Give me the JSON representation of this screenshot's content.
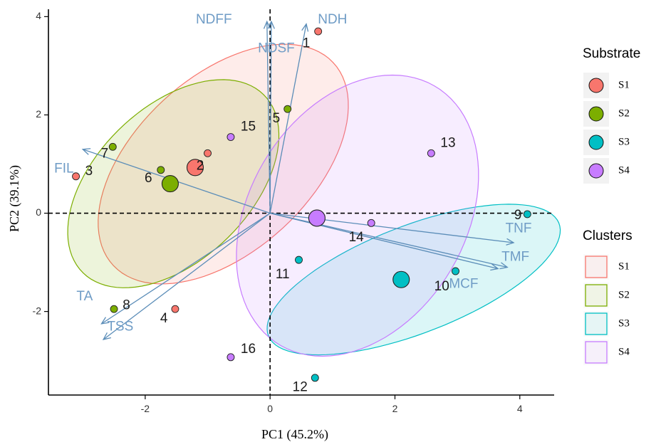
{
  "chart_data": {
    "type": "scatter",
    "subtype": "pca-biplot",
    "xlabel": "PC1 (45.2%)",
    "ylabel": "PC2 (39.1%)",
    "xlim": [
      -3.55,
      4.55
    ],
    "ylim": [
      -3.7,
      4.15
    ],
    "xticks": [
      -2,
      0,
      2,
      4
    ],
    "yticks": [
      -2,
      0,
      2,
      4
    ],
    "grid": false,
    "reference_lines": {
      "x": 0,
      "y": 0,
      "style": "dashed"
    },
    "groups": [
      {
        "name": "S1",
        "color": "#F8766D"
      },
      {
        "name": "S2",
        "color": "#7CAE00"
      },
      {
        "name": "S3",
        "color": "#00BFC4"
      },
      {
        "name": "S4",
        "color": "#C77CFF"
      }
    ],
    "points": [
      {
        "label": "1",
        "x": 0.77,
        "y": 3.7,
        "group": "S1"
      },
      {
        "label": "2",
        "x": -1.0,
        "y": 1.22,
        "group": "S1"
      },
      {
        "label": "3",
        "x": -3.11,
        "y": 0.75,
        "group": "S1"
      },
      {
        "label": "4",
        "x": -1.52,
        "y": -1.95,
        "group": "S1"
      },
      {
        "label": "5",
        "x": 0.28,
        "y": 2.12,
        "group": "S2"
      },
      {
        "label": "6",
        "x": -1.75,
        "y": 0.88,
        "group": "S2"
      },
      {
        "label": "7",
        "x": -2.52,
        "y": 1.35,
        "group": "S2"
      },
      {
        "label": "8",
        "x": -2.5,
        "y": -1.95,
        "group": "S2"
      },
      {
        "label": "9",
        "x": 4.12,
        "y": -0.02,
        "group": "S3"
      },
      {
        "label": "10",
        "x": 2.97,
        "y": -1.18,
        "group": "S3"
      },
      {
        "label": "11",
        "x": 0.46,
        "y": -0.95,
        "group": "S3"
      },
      {
        "label": "12",
        "x": 0.72,
        "y": -3.35,
        "group": "S3"
      },
      {
        "label": "13",
        "x": 2.58,
        "y": 1.22,
        "group": "S4"
      },
      {
        "label": "14",
        "x": 1.62,
        "y": -0.2,
        "group": "S4"
      },
      {
        "label": "15",
        "x": -0.63,
        "y": 1.55,
        "group": "S4"
      },
      {
        "label": "16",
        "x": -0.63,
        "y": -2.93,
        "group": "S4"
      }
    ],
    "centroids": [
      {
        "group": "S1",
        "x": -1.2,
        "y": 0.93
      },
      {
        "group": "S2",
        "x": -1.6,
        "y": 0.6
      },
      {
        "group": "S3",
        "x": 2.1,
        "y": -1.35
      },
      {
        "group": "S4",
        "x": 0.75,
        "y": -0.1
      }
    ],
    "ellipses": [
      {
        "group": "S1",
        "cx": -0.75,
        "cy": 1.0,
        "rx": 2.75,
        "ry": 1.55,
        "angle": 56
      },
      {
        "group": "S2",
        "cx": -1.55,
        "cy": 0.6,
        "rx": 2.35,
        "ry": 1.35,
        "angle": 58
      },
      {
        "group": "S3",
        "cx": 2.3,
        "cy": -1.35,
        "rx": 2.6,
        "ry": 1.05,
        "angle": 28
      },
      {
        "group": "S4",
        "cx": 1.4,
        "cy": -0.05,
        "rx": 2.95,
        "ry": 1.8,
        "angle": 72
      }
    ],
    "loadings": [
      {
        "label": "NDFF",
        "x": -0.05,
        "y": 3.9
      },
      {
        "label": "NDSF",
        "x": 0.02,
        "y": 3.9
      },
      {
        "label": "NDH",
        "x": 0.58,
        "y": 3.85
      },
      {
        "label": "FIL",
        "x": -3.0,
        "y": 1.3
      },
      {
        "label": "TA",
        "x": -2.7,
        "y": -2.25
      },
      {
        "label": "TSS",
        "x": -2.67,
        "y": -2.57
      },
      {
        "label": "TNF",
        "x": 3.9,
        "y": -0.6
      },
      {
        "label": "TMF",
        "x": 3.8,
        "y": -1.1
      },
      {
        "label": "MCF",
        "x": 3.65,
        "y": -1.13
      }
    ],
    "loading_labels": [
      {
        "label": "NDFF",
        "x": -0.9,
        "y": 3.93
      },
      {
        "label": "NDSF",
        "x": 0.1,
        "y": 3.35
      },
      {
        "label": "NDH",
        "x": 1.0,
        "y": 3.93
      },
      {
        "label": "FIL",
        "x": -3.3,
        "y": 0.9
      },
      {
        "label": "TA",
        "x": -2.97,
        "y": -1.7
      },
      {
        "label": "TSS",
        "x": -2.4,
        "y": -2.32
      },
      {
        "label": "TNF",
        "x": 3.98,
        "y": -0.32
      },
      {
        "label": "TMF",
        "x": 3.93,
        "y": -0.9
      },
      {
        "label": "MCF",
        "x": 3.1,
        "y": -1.45
      }
    ],
    "point_labels": [
      {
        "label": "1",
        "x": 0.58,
        "y": 3.45
      },
      {
        "label": "2",
        "x": -1.12,
        "y": 0.96
      },
      {
        "label": "3",
        "x": -2.9,
        "y": 0.85
      },
      {
        "label": "4",
        "x": -1.7,
        "y": -2.15
      },
      {
        "label": "5",
        "x": 0.1,
        "y": 1.92
      },
      {
        "label": "6",
        "x": -1.95,
        "y": 0.7
      },
      {
        "label": "7",
        "x": -2.65,
        "y": 1.2
      },
      {
        "label": "8",
        "x": -2.3,
        "y": -1.88
      },
      {
        "label": "9",
        "x": 3.97,
        "y": -0.05
      },
      {
        "label": "10",
        "x": 2.75,
        "y": -1.5
      },
      {
        "label": "11",
        "x": 0.2,
        "y": -1.25
      },
      {
        "label": "12",
        "x": 0.48,
        "y": -3.55
      },
      {
        "label": "13",
        "x": 2.85,
        "y": 1.42
      },
      {
        "label": "14",
        "x": 1.38,
        "y": -0.5
      },
      {
        "label": "15",
        "x": -0.35,
        "y": 1.75
      },
      {
        "label": "16",
        "x": -0.35,
        "y": -2.77
      }
    ],
    "legends": [
      {
        "title": "Substrate",
        "kind": "point",
        "entries": [
          "S1",
          "S2",
          "S3",
          "S4"
        ]
      },
      {
        "title": "Clusters",
        "kind": "ellipse",
        "entries": [
          "S1",
          "S2",
          "S3",
          "S4"
        ]
      }
    ]
  }
}
